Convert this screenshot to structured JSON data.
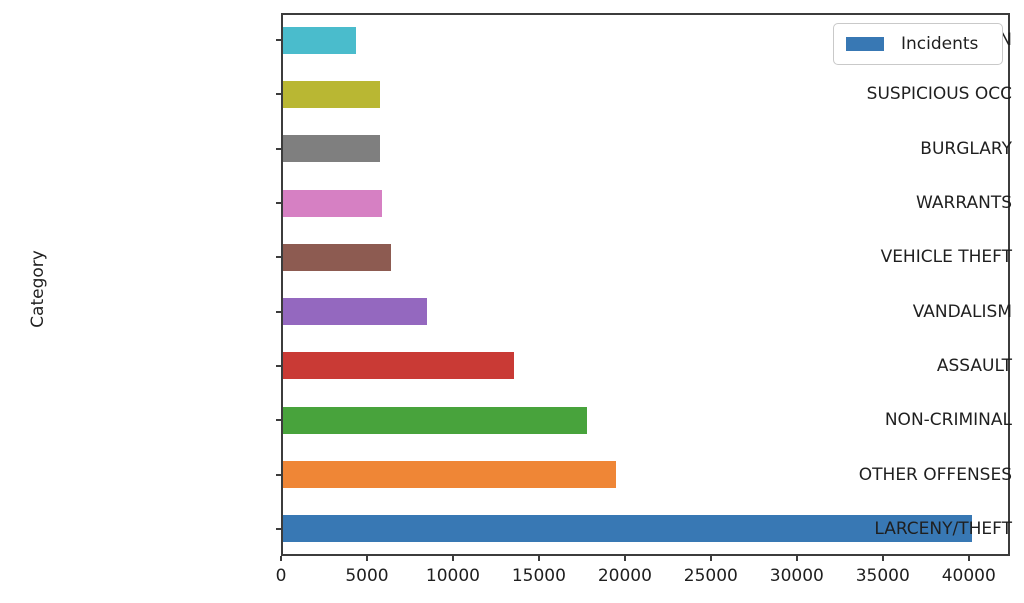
{
  "figure": {
    "background": "#ffffff",
    "axis_color": "#3c3c3c",
    "text_color": "#1f1f1f"
  },
  "legend": {
    "label": "Incidents",
    "swatch_color": "#3878b4"
  },
  "chart_data": {
    "type": "bar",
    "orientation": "horizontal",
    "title": "",
    "xlabel": "",
    "ylabel": "Category",
    "xlim": [
      0,
      42400
    ],
    "xticks": [
      0,
      5000,
      10000,
      15000,
      20000,
      25000,
      30000,
      35000,
      40000
    ],
    "grid": false,
    "legend_position": "upper right",
    "categories_top_to_bottom": [
      "MISSING PERSON",
      "SUSPICIOUS OCC",
      "BURGLARY",
      "WARRANTS",
      "VEHICLE THEFT",
      "VANDALISM",
      "ASSAULT",
      "NON-CRIMINAL",
      "OTHER OFFENSES",
      "LARCENY/THEFT"
    ],
    "series": [
      {
        "name": "Incidents",
        "values": [
          4250,
          5680,
          5700,
          5780,
          6320,
          8440,
          13530,
          17780,
          19490,
          40290
        ]
      }
    ],
    "bar_colors": [
      "#4abccc",
      "#b9b733",
      "#7f7f7f",
      "#d680c3",
      "#8d5b51",
      "#9468bf",
      "#c93a35",
      "#48a33c",
      "#ef8636",
      "#3878b4"
    ]
  }
}
